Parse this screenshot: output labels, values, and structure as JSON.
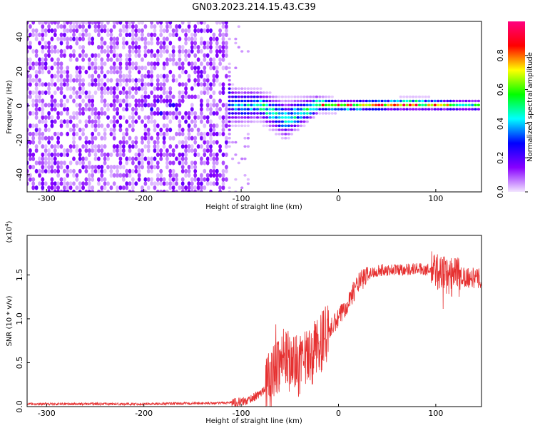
{
  "title": "GN03.2023.214.15.43.C39",
  "chart_data": [
    {
      "type": "heatmap",
      "xlabel": "Height of straight line (km)",
      "ylabel": "Frequency (Hz)",
      "xlim": [
        -320,
        147
      ],
      "ylim": [
        -50,
        49
      ],
      "xticks": [
        -300,
        -200,
        -100,
        0,
        100
      ],
      "yticks": [
        -40,
        -20,
        0,
        20,
        40
      ],
      "colorbar": {
        "label": "Normalized spectral amplitude",
        "range": [
          0,
          1
        ],
        "ticks": [
          "0.0",
          "0.2",
          "0.4",
          "0.6",
          "0.8"
        ],
        "tick_values": [
          0.0,
          0.2,
          0.4,
          0.6,
          0.8
        ],
        "colors": [
          "#f3e6ff",
          "#8800ff",
          "#0000ff",
          "#00ffff",
          "#00ff00",
          "#ffff00",
          "#ff0000",
          "#ff0080"
        ]
      },
      "description_points": [
        {
          "x": -320,
          "y_center": 0,
          "spread": 50,
          "amplitude": 0.12
        },
        {
          "x": -120,
          "y_center": 0,
          "spread": 50,
          "amplitude": 0.08
        },
        {
          "x": -110,
          "y_center": 0,
          "spread": 8,
          "amplitude": 0.35
        },
        {
          "x": -80,
          "y_center": 0,
          "spread": 6,
          "amplitude": 0.5
        },
        {
          "x": -55,
          "y_center": -8,
          "spread": 8,
          "amplitude": 0.45
        },
        {
          "x": -20,
          "y_center": 1,
          "spread": 3,
          "amplitude": 0.7
        },
        {
          "x": 0,
          "y_center": 0,
          "spread": 2,
          "amplitude": 0.9
        },
        {
          "x": 80,
          "y_center": 1,
          "spread": 2,
          "amplitude": 0.85
        },
        {
          "x": 147,
          "y_center": 0,
          "spread": 2,
          "amplitude": 0.5
        }
      ]
    },
    {
      "type": "line",
      "xlabel": "Height of straight line (km)",
      "ylabel": "SNR (10 * v/v)",
      "multiplier_label": "(x10",
      "multiplier_exp": "4",
      "multiplier_close": ")",
      "xlim": [
        -320,
        147
      ],
      "ylim": [
        0,
        1.95
      ],
      "xticks": [
        -300,
        -200,
        -100,
        0,
        100
      ],
      "yticks": [
        "0.0",
        "0.5",
        "1.0",
        "1.5"
      ],
      "ytick_values": [
        0.0,
        0.5,
        1.0,
        1.5
      ],
      "color": "#e63030",
      "series": [
        {
          "x": [
            -320,
            -200,
            -120,
            -95,
            -80,
            -70,
            -62,
            -55,
            -48,
            -40,
            -30,
            -20,
            -10,
            0,
            10,
            20,
            30,
            40,
            60,
            80,
            100,
            110,
            115,
            120,
            130,
            147
          ],
          "y": [
            0.03,
            0.03,
            0.04,
            0.06,
            0.15,
            0.3,
            0.5,
            0.55,
            0.5,
            0.45,
            0.55,
            0.7,
            0.85,
            1.0,
            1.2,
            1.4,
            1.5,
            1.55,
            1.56,
            1.57,
            1.55,
            1.5,
            1.45,
            1.5,
            1.48,
            1.45
          ]
        }
      ]
    }
  ]
}
